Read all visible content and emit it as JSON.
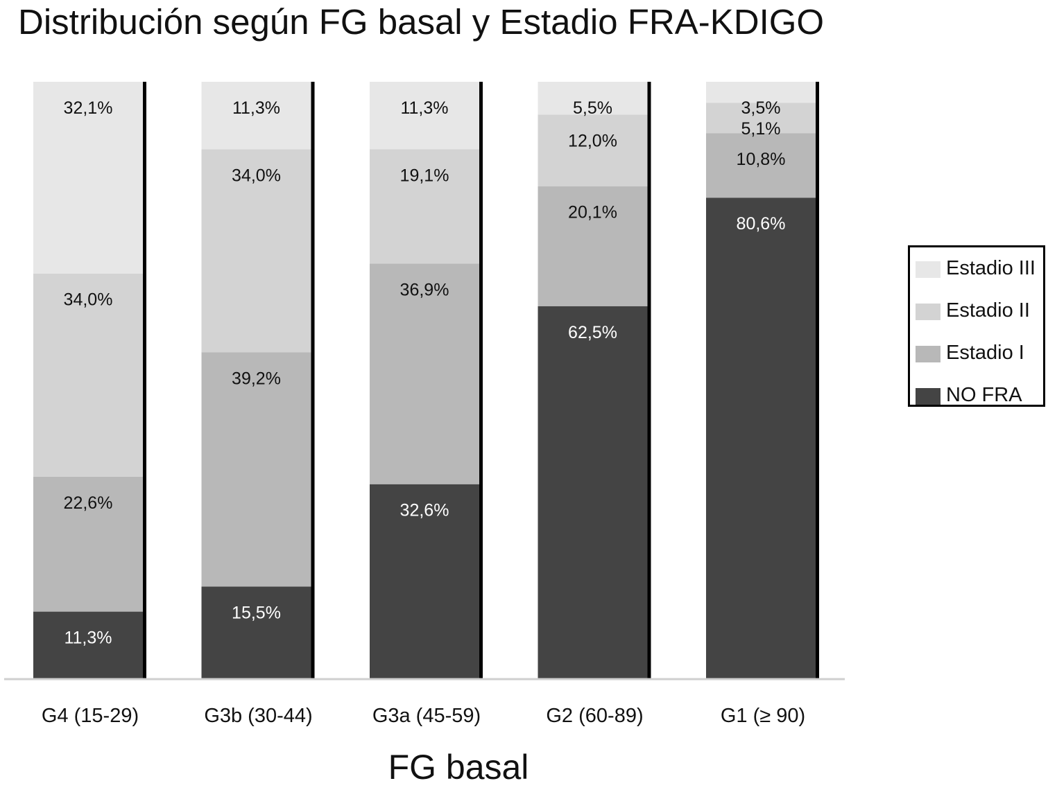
{
  "chart_data": {
    "type": "bar",
    "stacked": true,
    "title": "Distribución según FG basal y Estadio FRA-KDIGO",
    "xlabel": "FG basal",
    "ylabel": "",
    "ylim": [
      0,
      100
    ],
    "grid": false,
    "legend_position": "right",
    "categories": [
      "G4 (15-29)",
      "G3b (30-44)",
      "G3a (45-59)",
      "G2 (60-89)",
      "G1 (≥ 90)"
    ],
    "series": [
      {
        "name": "NO FRA",
        "color": "#444444",
        "values": [
          11.3,
          15.5,
          32.6,
          62.5,
          80.6
        ],
        "labels": [
          "11,3%",
          "15,5%",
          "32,6%",
          "62,5%",
          "80,6%"
        ]
      },
      {
        "name": "Estadio I",
        "color": "#b8b8b8",
        "values": [
          22.6,
          39.2,
          36.9,
          20.1,
          10.8
        ],
        "labels": [
          "22,6%",
          "39,2%",
          "36,9%",
          "20,1%",
          "10,8%"
        ]
      },
      {
        "name": "Estadio II",
        "color": "#d3d3d3",
        "values": [
          34.0,
          34.0,
          19.1,
          12.0,
          5.1
        ],
        "labels": [
          "34,0%",
          "34,0%",
          "19,1%",
          "12,0%",
          "5,1%"
        ]
      },
      {
        "name": "Estadio III",
        "color": "#e7e7e7",
        "values": [
          32.1,
          11.3,
          11.3,
          5.5,
          3.5
        ],
        "labels": [
          "32,1%",
          "11,3%",
          "11,3%",
          "5,5%",
          "3,5%"
        ]
      }
    ],
    "legend_order": [
      "Estadio III",
      "Estadio II",
      "Estadio I",
      "NO FRA"
    ]
  }
}
